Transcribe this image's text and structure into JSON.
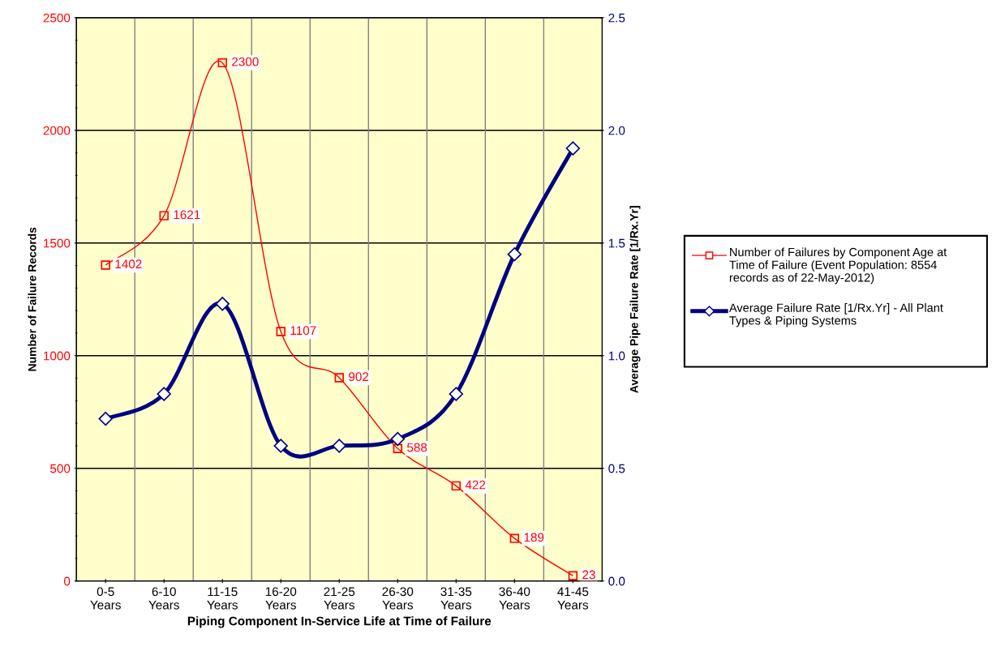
{
  "chart_data": {
    "type": "line",
    "xlabel": "Piping Component In-Service Life at Time of Failure",
    "ylabel": "Number of Failure Records",
    "y2label": "Average Pipe Failure Rate [1/Rx.Yr]",
    "categories": [
      "0-5\nYears",
      "6-10\nYears",
      "11-15\nYears",
      "16-20\nYears",
      "21-25\nYears",
      "26-30\nYears",
      "31-35\nYears",
      "36-40\nYears",
      "41-45\nYears"
    ],
    "series": [
      {
        "name": "Number of Failures by Component Age at\nTime of Failure (Event Population: 8554\nrecords as of 22-May-2012)",
        "color": "#ff0000",
        "values": [
          1402,
          1621,
          2300,
          1107,
          902,
          588,
          422,
          189,
          23
        ],
        "value_labels": [
          "1402",
          "1621",
          "2300",
          "1107",
          "902",
          "588",
          "422",
          "189",
          "23"
        ],
        "marker": "square"
      },
      {
        "name": "Average Failure Rate [1/Rx.Yr] - All Plant\nTypes & Piping Systems",
        "color": "#000080",
        "axis": "y2",
        "values": [
          0.72,
          0.83,
          1.23,
          0.6,
          0.6,
          0.63,
          0.83,
          1.45,
          1.92
        ],
        "marker": "diamond"
      }
    ],
    "ylim": [
      0,
      2500
    ],
    "yticks": [
      0,
      500,
      1000,
      1500,
      2000,
      2500
    ],
    "y2lim": [
      0,
      2.5
    ],
    "y2ticks": [
      {
        "value": 0,
        "label": "0.0"
      },
      {
        "value": 0.5,
        "label": "0.5"
      },
      {
        "value": 1,
        "label": "1.0"
      },
      {
        "value": 1.5,
        "label": "1.5"
      },
      {
        "value": 2,
        "label": "2.0"
      },
      {
        "value": 2.5,
        "label": "2.5"
      }
    ],
    "grid": true,
    "legend": "right",
    "line_style": "solid"
  }
}
